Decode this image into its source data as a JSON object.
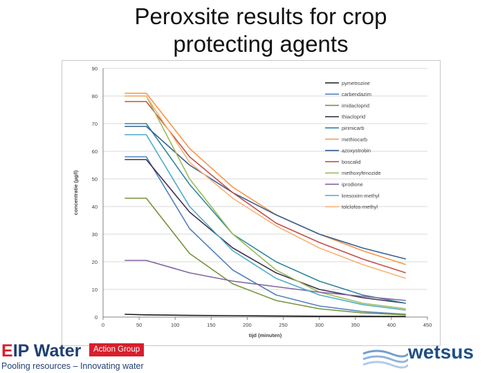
{
  "slide": {
    "title_line1": "Peroxsite results for crop",
    "title_line2": "protecting agents"
  },
  "logos": {
    "eip_prefix": "E",
    "eip_rest": "IP Water",
    "action_group": "Action Group",
    "pooling": "Pooling resources – Innovating water",
    "wetsus": "wetsus"
  },
  "chart_data": {
    "type": "line",
    "xlabel": "tijd (minuten)",
    "ylabel": "concentratie (µg/l)",
    "xlim": [
      0,
      450
    ],
    "ylim": [
      0,
      90
    ],
    "x_ticks": [
      0,
      50,
      100,
      150,
      200,
      250,
      300,
      350,
      400,
      450
    ],
    "y_ticks": [
      0,
      10,
      20,
      30,
      40,
      50,
      60,
      70,
      80,
      90
    ],
    "grid": "horizontal",
    "legend_position": "top-right",
    "x": [
      30,
      60,
      120,
      180,
      240,
      300,
      360,
      420
    ],
    "series": [
      {
        "name": "pymetrozine",
        "color": "#1a1a1a",
        "values": [
          1,
          0.8,
          0.6,
          0.5,
          0.4,
          0.3,
          0.3,
          0.2
        ]
      },
      {
        "name": "carbendazim",
        "color": "#4f81bd",
        "values": [
          58,
          58,
          32,
          17,
          8,
          4,
          2,
          1
        ]
      },
      {
        "name": "imidacloprid",
        "color": "#76923c",
        "values": [
          43,
          43,
          23,
          12,
          6,
          3,
          1.5,
          0.8
        ]
      },
      {
        "name": "thiacloprid",
        "color": "#403151",
        "values": [
          57,
          57,
          38,
          25,
          16,
          10,
          7,
          5
        ]
      },
      {
        "name": "pirimicarb",
        "color": "#31859c",
        "values": [
          70,
          70,
          48,
          30,
          20,
          13,
          8,
          5
        ]
      },
      {
        "name": "methiocarb",
        "color": "#f79646",
        "values": [
          81,
          81,
          61,
          47,
          37,
          30,
          24,
          19
        ]
      },
      {
        "name": "azoxystrobin",
        "color": "#365f91",
        "values": [
          69,
          69,
          55,
          45,
          37,
          30,
          25,
          21
        ]
      },
      {
        "name": "boscalid",
        "color": "#c0504d",
        "values": [
          78,
          78,
          58,
          45,
          34,
          27,
          21,
          16
        ]
      },
      {
        "name": "methoxyfenozide",
        "color": "#9bbb59",
        "values": [
          80,
          80,
          50,
          30,
          17,
          9,
          5,
          3
        ]
      },
      {
        "name": "iprodione",
        "color": "#8064a2",
        "values": [
          20.5,
          20.5,
          16,
          13,
          11,
          9,
          7.5,
          6
        ]
      },
      {
        "name": "kresoxim-methyl",
        "color": "#4bacc6",
        "values": [
          66,
          66,
          40,
          24,
          14,
          8,
          4.5,
          2.5
        ]
      },
      {
        "name": "tolclofos-methyl",
        "color": "#fab173",
        "values": [
          80,
          80,
          56,
          43,
          33,
          25,
          19,
          14
        ]
      }
    ]
  }
}
